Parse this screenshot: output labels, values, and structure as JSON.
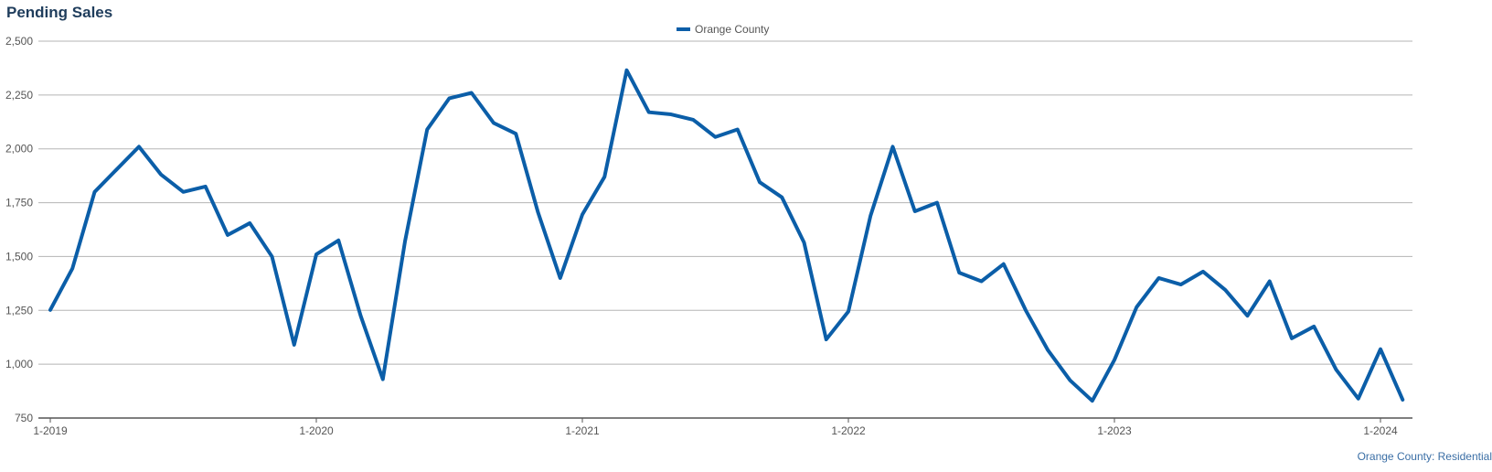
{
  "colors": {
    "series": "#0b5ea8",
    "title": "#1f3d5c",
    "grid": "#b5b5b5",
    "axis": "#555555",
    "tick_label": "#555555",
    "footer": "#3a6ea5"
  },
  "footer": {
    "source": "Orange County: Residential"
  },
  "chart_data": {
    "type": "line",
    "title": "Pending Sales",
    "xlabel": "",
    "ylabel": "",
    "ylim": [
      750,
      2500
    ],
    "yticks": [
      750,
      1000,
      1250,
      1500,
      1750,
      2000,
      2250,
      2500
    ],
    "ytick_labels": [
      "750",
      "1,000",
      "1,250",
      "1,500",
      "1,750",
      "2,000",
      "2,250",
      "2,500"
    ],
    "xticks": [
      {
        "label": "1-2019",
        "index": 0
      },
      {
        "label": "1-2020",
        "index": 12
      },
      {
        "label": "1-2021",
        "index": 24
      },
      {
        "label": "1-2022",
        "index": 36
      },
      {
        "label": "1-2023",
        "index": 48
      },
      {
        "label": "1-2024",
        "index": 60
      }
    ],
    "grid": true,
    "legend": "top-center",
    "series": [
      {
        "name": "Orange County",
        "color": "#0b5ea8",
        "x": [
          "1-2019",
          "2-2019",
          "3-2019",
          "4-2019",
          "5-2019",
          "6-2019",
          "7-2019",
          "8-2019",
          "9-2019",
          "10-2019",
          "11-2019",
          "12-2019",
          "1-2020",
          "2-2020",
          "3-2020",
          "4-2020",
          "5-2020",
          "6-2020",
          "7-2020",
          "8-2020",
          "9-2020",
          "10-2020",
          "11-2020",
          "12-2020",
          "1-2021",
          "2-2021",
          "3-2021",
          "4-2021",
          "5-2021",
          "6-2021",
          "7-2021",
          "8-2021",
          "9-2021",
          "10-2021",
          "11-2021",
          "12-2021",
          "1-2022",
          "2-2022",
          "3-2022",
          "4-2022",
          "5-2022",
          "6-2022",
          "7-2022",
          "8-2022",
          "9-2022",
          "10-2022",
          "11-2022",
          "12-2022",
          "1-2023",
          "2-2023",
          "3-2023",
          "4-2023",
          "5-2023",
          "6-2023",
          "7-2023",
          "8-2023",
          "9-2023",
          "10-2023",
          "11-2023",
          "12-2023",
          "1-2024",
          "2-2024"
        ],
        "values": [
          1252,
          1445,
          1800,
          1905,
          2010,
          1880,
          1800,
          1825,
          1600,
          1655,
          1500,
          1090,
          1510,
          1575,
          1225,
          930,
          1570,
          2090,
          2235,
          2260,
          2120,
          2070,
          1705,
          1400,
          1695,
          1870,
          2365,
          2170,
          2160,
          2135,
          2055,
          2090,
          1845,
          1775,
          1565,
          1115,
          1245,
          1690,
          2010,
          1710,
          1750,
          1425,
          1385,
          1465,
          1250,
          1065,
          925,
          830,
          1020,
          1265,
          1400,
          1370,
          1430,
          1345,
          1225,
          1385,
          1120,
          1175,
          975,
          840,
          1070,
          835
        ]
      }
    ]
  }
}
